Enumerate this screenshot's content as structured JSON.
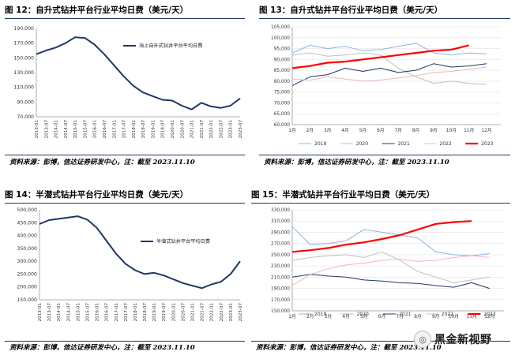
{
  "panels": [
    {
      "title": "图 12：自升式钻井平台行业平均日费（美元/天）",
      "source": "资料来源：彭博，信达证券研发中心，注：截至 2023.11.10",
      "chart": {
        "type": "line",
        "ylim": [
          70000,
          190000
        ],
        "yticks": [
          "70,000",
          "90,000",
          "110,000",
          "130,000",
          "150,000",
          "170,000",
          "190,000"
        ],
        "xticks": [
          "2013-01",
          "2013-07",
          "2014-01",
          "2014-07",
          "2015-01",
          "2015-07",
          "2016-01",
          "2016-07",
          "2017-01",
          "2017-07",
          "2018-01",
          "2018-07",
          "2019-01",
          "2019-07",
          "2020-01",
          "2020-07",
          "2021-01",
          "2021-07",
          "2022-01",
          "2022-07",
          "2023-01",
          "2023-07"
        ],
        "series": [
          {
            "name": "海上自升式钻井平台平均日费",
            "color": "#1f3864",
            "points": [
              [
                0,
                155000
              ],
              [
                1,
                160000
              ],
              [
                2,
                164000
              ],
              [
                3,
                170000
              ],
              [
                4,
                178000
              ],
              [
                5,
                177000
              ],
              [
                6,
                168000
              ],
              [
                7,
                155000
              ],
              [
                8,
                140000
              ],
              [
                9,
                125000
              ],
              [
                10,
                112000
              ],
              [
                11,
                103000
              ],
              [
                12,
                98000
              ],
              [
                13,
                93000
              ],
              [
                14,
                92000
              ],
              [
                15,
                85000
              ],
              [
                16,
                80000
              ],
              [
                17,
                89000
              ],
              [
                18,
                84000
              ],
              [
                19,
                82000
              ],
              [
                20,
                85000
              ],
              [
                21,
                95000
              ]
            ]
          }
        ]
      }
    },
    {
      "title": "图 13：自升式钻井平台行业平均日费（美元/天）",
      "source": "资料来源：彭博，信达证券研发中心，注：截至 2023.11.10",
      "chart": {
        "type": "line",
        "ylim": [
          60000,
          105000
        ],
        "yticks": [
          "60,000",
          "65,000",
          "70,000",
          "75,000",
          "80,000",
          "85,000",
          "90,000",
          "95,000",
          "100,000",
          "105,000"
        ],
        "xticks": [
          "1月",
          "2月",
          "3月",
          "4月",
          "5月",
          "6月",
          "7月",
          "8月",
          "9月",
          "10月",
          "11月",
          "12月"
        ],
        "series": [
          {
            "name": "2019",
            "color": "#8db3e2",
            "width": 1,
            "points": [
              [
                1,
                93000
              ],
              [
                2,
                96500
              ],
              [
                3,
                95000
              ],
              [
                4,
                96000
              ],
              [
                5,
                94000
              ],
              [
                6,
                94500
              ],
              [
                7,
                96000
              ],
              [
                8,
                97500
              ],
              [
                9,
                93000
              ],
              [
                10,
                92000
              ],
              [
                11,
                93000
              ],
              [
                12,
                92500
              ]
            ]
          },
          {
            "name": "2020",
            "color": "#bfbfbf",
            "width": 1,
            "points": [
              [
                1,
                92000
              ],
              [
                2,
                93000
              ],
              [
                3,
                91500
              ],
              [
                4,
                92000
              ],
              [
                5,
                93000
              ],
              [
                6,
                92000
              ],
              [
                7,
                86000
              ],
              [
                8,
                82000
              ],
              [
                9,
                79000
              ],
              [
                10,
                80000
              ],
              [
                11,
                79000
              ],
              [
                12,
                78500
              ]
            ]
          },
          {
            "name": "2021",
            "color": "#1f3864",
            "width": 1,
            "points": [
              [
                1,
                78000
              ],
              [
                2,
                82000
              ],
              [
                3,
                83000
              ],
              [
                4,
                86000
              ],
              [
                5,
                84500
              ],
              [
                6,
                86000
              ],
              [
                7,
                84000
              ],
              [
                8,
                85000
              ],
              [
                9,
                88000
              ],
              [
                10,
                86500
              ],
              [
                11,
                87000
              ],
              [
                12,
                88000
              ]
            ]
          },
          {
            "name": "2022",
            "color": "#f4b6b6",
            "width": 1,
            "points": [
              [
                1,
                81000
              ],
              [
                2,
                80500
              ],
              [
                3,
                82000
              ],
              [
                4,
                81000
              ],
              [
                5,
                80000
              ],
              [
                6,
                80500
              ],
              [
                7,
                81500
              ],
              [
                8,
                82500
              ],
              [
                9,
                84000
              ],
              [
                10,
                84500
              ],
              [
                11,
                85500
              ],
              [
                12,
                86500
              ]
            ]
          },
          {
            "name": "2023",
            "color": "#ff0000",
            "width": 2.2,
            "points": [
              [
                1,
                86000
              ],
              [
                2,
                87000
              ],
              [
                3,
                88500
              ],
              [
                4,
                89000
              ],
              [
                5,
                90000
              ],
              [
                6,
                91000
              ],
              [
                7,
                92000
              ],
              [
                8,
                93000
              ],
              [
                9,
                94000
              ],
              [
                10,
                94500
              ],
              [
                11,
                96500
              ]
            ]
          }
        ]
      }
    },
    {
      "title": "图 14：半潜式钻井平台行业平均日费（美元/天）",
      "source": "资料来源：彭博，信达证券研发中心，注：截至 2023.11.10",
      "chart": {
        "type": "line",
        "ylim": [
          150000,
          500000
        ],
        "yticks": [
          "150,000",
          "200,000",
          "250,000",
          "300,000",
          "350,000",
          "400,000",
          "450,000",
          "500,000"
        ],
        "xticks": [
          "2013-01",
          "2013-07",
          "2014-01",
          "2014-07",
          "2015-01",
          "2015-07",
          "2016-01",
          "2016-07",
          "2017-01",
          "2017-07",
          "2018-01",
          "2018-07",
          "2019-01",
          "2019-07",
          "2020-01",
          "2020-07",
          "2021-01",
          "2021-07",
          "2022-01",
          "2022-07",
          "2023-01",
          "2023-07"
        ],
        "series": [
          {
            "name": "半潜式钻井平台平均日费",
            "color": "#1f3864",
            "points": [
              [
                0,
                445000
              ],
              [
                1,
                460000
              ],
              [
                2,
                465000
              ],
              [
                3,
                470000
              ],
              [
                4,
                475000
              ],
              [
                5,
                462000
              ],
              [
                6,
                430000
              ],
              [
                7,
                380000
              ],
              [
                8,
                330000
              ],
              [
                9,
                290000
              ],
              [
                10,
                265000
              ],
              [
                11,
                250000
              ],
              [
                12,
                255000
              ],
              [
                13,
                245000
              ],
              [
                14,
                230000
              ],
              [
                15,
                215000
              ],
              [
                16,
                205000
              ],
              [
                17,
                195000
              ],
              [
                18,
                210000
              ],
              [
                19,
                220000
              ],
              [
                20,
                250000
              ],
              [
                21,
                300000
              ]
            ]
          }
        ]
      }
    },
    {
      "title": "图 15：半潜式钻井平台行业平均日费（美元/天）",
      "source": "资料来源：彭博，信达证券研发中心，注：截至 2023.11.10",
      "chart": {
        "type": "line",
        "ylim": [
          150000,
          330000
        ],
        "yticks": [
          "150,000",
          "170,000",
          "190,000",
          "210,000",
          "230,000",
          "250,000",
          "270,000",
          "290,000",
          "310,000",
          "330,000"
        ],
        "xticks": [
          "1月",
          "2月",
          "3月",
          "4月",
          "5月",
          "6月",
          "7月",
          "8月",
          "9月",
          "10月",
          "11月",
          "12月"
        ],
        "series": [
          {
            "name": "2019",
            "color": "#8db3e2",
            "width": 1,
            "points": [
              [
                1,
                300000
              ],
              [
                2,
                268000
              ],
              [
                3,
                270000
              ],
              [
                4,
                275000
              ],
              [
                5,
                295000
              ],
              [
                6,
                290000
              ],
              [
                7,
                285000
              ],
              [
                8,
                280000
              ],
              [
                9,
                255000
              ],
              [
                10,
                250000
              ],
              [
                11,
                248000
              ],
              [
                12,
                252000
              ]
            ]
          },
          {
            "name": "2020",
            "color": "#bfbfbf",
            "width": 1,
            "points": [
              [
                1,
                240000
              ],
              [
                2,
                245000
              ],
              [
                3,
                248000
              ],
              [
                4,
                250000
              ],
              [
                5,
                245000
              ],
              [
                6,
                255000
              ],
              [
                7,
                240000
              ],
              [
                8,
                220000
              ],
              [
                9,
                210000
              ],
              [
                10,
                200000
              ],
              [
                11,
                205000
              ],
              [
                12,
                210000
              ]
            ]
          },
          {
            "name": "2021",
            "color": "#1f3864",
            "width": 1,
            "points": [
              [
                1,
                210000
              ],
              [
                2,
                215000
              ],
              [
                3,
                212000
              ],
              [
                4,
                210000
              ],
              [
                5,
                205000
              ],
              [
                6,
                203000
              ],
              [
                7,
                200000
              ],
              [
                8,
                199000
              ],
              [
                9,
                195000
              ],
              [
                10,
                192000
              ],
              [
                11,
                200000
              ],
              [
                12,
                190000
              ]
            ]
          },
          {
            "name": "2022",
            "color": "#f4b6b6",
            "width": 1,
            "points": [
              [
                1,
                195000
              ],
              [
                2,
                215000
              ],
              [
                3,
                225000
              ],
              [
                4,
                232000
              ],
              [
                5,
                235000
              ],
              [
                6,
                240000
              ],
              [
                7,
                242000
              ],
              [
                8,
                238000
              ],
              [
                9,
                240000
              ],
              [
                10,
                245000
              ],
              [
                11,
                248000
              ],
              [
                12,
                245000
              ]
            ]
          },
          {
            "name": "2023",
            "color": "#ff0000",
            "width": 2.2,
            "points": [
              [
                1,
                255000
              ],
              [
                2,
                258000
              ],
              [
                3,
                262000
              ],
              [
                4,
                268000
              ],
              [
                5,
                272000
              ],
              [
                6,
                278000
              ],
              [
                7,
                285000
              ],
              [
                8,
                295000
              ],
              [
                9,
                305000
              ],
              [
                10,
                308000
              ],
              [
                11,
                310000
              ]
            ]
          }
        ]
      }
    }
  ],
  "watermark": {
    "text": "黑金新视野",
    "icon": "wechat-icon"
  }
}
